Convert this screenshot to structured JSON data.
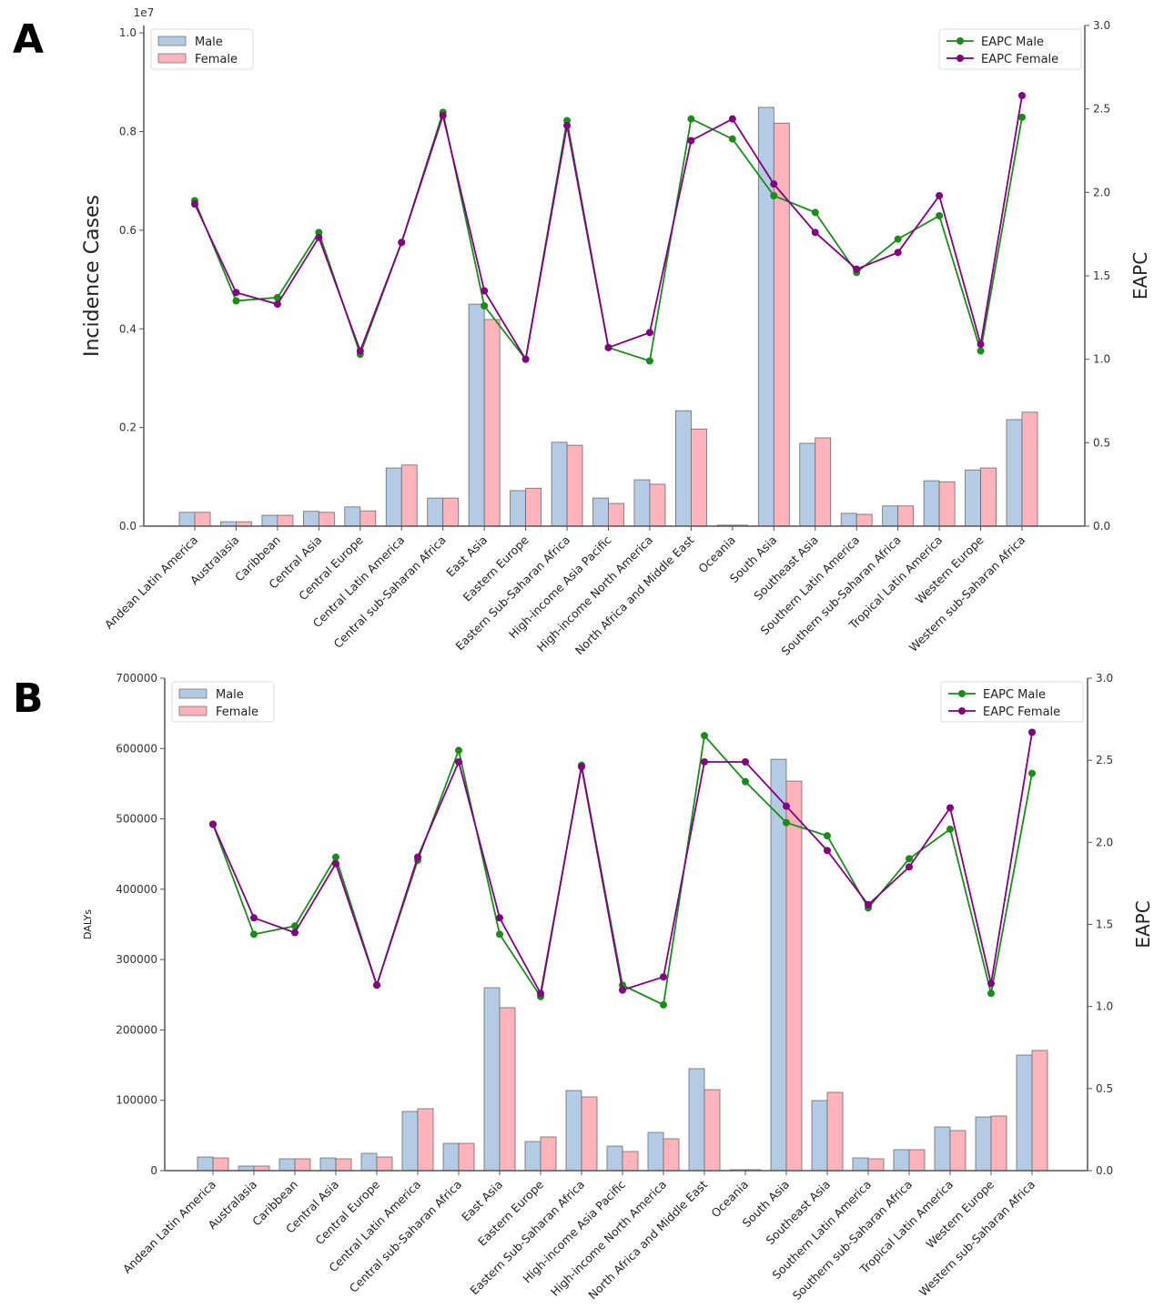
{
  "chart_data": [
    {
      "panel_label": "A",
      "type": "bar+line",
      "ylabel": "Incidence Cases",
      "y_offset_text": "1e7",
      "y2label": "EAPC",
      "ylim": [
        0,
        1.015
      ],
      "yticks": [
        "0.0",
        "0.2",
        "0.4",
        "0.6",
        "0.8",
        "1.0"
      ],
      "y2lim": [
        0,
        3.0
      ],
      "y2ticks": [
        "0.0",
        "0.5",
        "1.0",
        "1.5",
        "2.0",
        "2.5",
        "3.0"
      ],
      "legend_bars_placement": "top-left",
      "legend_lines_placement": "top-right",
      "grid": false,
      "colors": {
        "male_bar": "#b3cbe3",
        "female_bar": "#ffb3ba",
        "eapc_male": "#1a8c1a",
        "eapc_female": "#800080"
      },
      "categories": [
        "Andean Latin America",
        "Australasia",
        "Caribbean",
        "Central Asia",
        "Central Europe",
        "Central Latin America",
        "Central sub-Saharan Africa",
        "East Asia",
        "Eastern Europe",
        "Eastern Sub-Saharan Africa",
        "High-income Asia Pacific",
        "High-income North America",
        "North Africa and Middle East",
        "Oceania",
        "South Asia",
        "Southeast Asia",
        "Southern Latin America",
        "Southern sub-Saharan Africa",
        "Tropical Latin America",
        "Western Europe",
        "Western sub-Saharan Africa"
      ],
      "bar_series": [
        {
          "name": "Male",
          "values": [
            0.028,
            0.009,
            0.022,
            0.03,
            0.039,
            0.118,
            0.057,
            0.45,
            0.072,
            0.17,
            0.057,
            0.094,
            0.234,
            0.002,
            0.849,
            0.168,
            0.026,
            0.041,
            0.092,
            0.114,
            0.216
          ]
        },
        {
          "name": "Female",
          "values": [
            0.028,
            0.009,
            0.022,
            0.028,
            0.031,
            0.124,
            0.057,
            0.419,
            0.077,
            0.164,
            0.046,
            0.085,
            0.197,
            0.002,
            0.817,
            0.179,
            0.024,
            0.041,
            0.09,
            0.118,
            0.231
          ]
        }
      ],
      "line_series": [
        {
          "name": "EAPC Male",
          "values": [
            1.95,
            1.35,
            1.37,
            1.76,
            1.03,
            1.7,
            2.48,
            1.32,
            1.0,
            2.43,
            1.07,
            0.99,
            2.44,
            2.32,
            1.98,
            1.88,
            1.52,
            1.72,
            1.86,
            1.05,
            2.45
          ]
        },
        {
          "name": "EAPC Female",
          "values": [
            1.93,
            1.4,
            1.33,
            1.73,
            1.05,
            1.7,
            2.46,
            1.41,
            1.0,
            2.4,
            1.07,
            1.16,
            2.31,
            2.44,
            2.05,
            1.76,
            1.54,
            1.64,
            1.98,
            1.09,
            2.58
          ]
        }
      ]
    },
    {
      "panel_label": "B",
      "type": "bar+line",
      "ylabel": "DALYs",
      "y_offset_text": "",
      "y2label": "EAPC",
      "ylim": [
        0,
        700000
      ],
      "yticks": [
        "0",
        "100000",
        "200000",
        "300000",
        "400000",
        "500000",
        "600000",
        "700000"
      ],
      "y2lim": [
        0,
        3.0
      ],
      "y2ticks": [
        "0.0",
        "0.5",
        "1.0",
        "1.5",
        "2.0",
        "2.5",
        "3.0"
      ],
      "legend_bars_placement": "top-left",
      "legend_lines_placement": "top-right",
      "grid": false,
      "colors": {
        "male_bar": "#b3cbe3",
        "female_bar": "#ffb3ba",
        "eapc_male": "#1a8c1a",
        "eapc_female": "#800080"
      },
      "categories": [
        "Andean Latin America",
        "Australasia",
        "Caribbean",
        "Central Asia",
        "Central Europe",
        "Central Latin America",
        "Central sub-Saharan Africa",
        "East Asia",
        "Eastern Europe",
        "Eastern Sub-Saharan Africa",
        "High-income Asia Pacific",
        "High-income North America",
        "North Africa and Middle East",
        "Oceania",
        "South Asia",
        "Southeast Asia",
        "Southern Latin America",
        "Southern sub-Saharan Africa",
        "Tropical Latin America",
        "Western Europe",
        "Western sub-Saharan Africa"
      ],
      "bar_series": [
        {
          "name": "Male",
          "values": [
            19400,
            6500,
            16800,
            18100,
            24600,
            84100,
            38800,
            260000,
            41400,
            113800,
            34900,
            54300,
            144900,
            1300,
            584700,
            99600,
            18100,
            29800,
            62100,
            76300,
            164300
          ]
        },
        {
          "name": "Female",
          "values": [
            18100,
            6500,
            16800,
            16800,
            19400,
            88000,
            38800,
            231600,
            47900,
            104800,
            27200,
            45300,
            115100,
            1300,
            553700,
            111300,
            16800,
            29800,
            56900,
            77600,
            170800
          ]
        }
      ],
      "line_series": [
        {
          "name": "EAPC Male",
          "values": [
            2.11,
            1.44,
            1.49,
            1.91,
            1.13,
            1.89,
            2.56,
            1.44,
            1.06,
            2.47,
            1.13,
            1.01,
            2.65,
            2.37,
            2.12,
            2.04,
            1.6,
            1.9,
            2.08,
            1.08,
            2.42
          ]
        },
        {
          "name": "EAPC Female",
          "values": [
            2.11,
            1.54,
            1.45,
            1.87,
            1.13,
            1.91,
            2.49,
            1.54,
            1.08,
            2.46,
            1.1,
            1.18,
            2.49,
            2.49,
            2.22,
            1.95,
            1.62,
            1.85,
            2.21,
            1.14,
            2.67
          ]
        }
      ]
    }
  ]
}
